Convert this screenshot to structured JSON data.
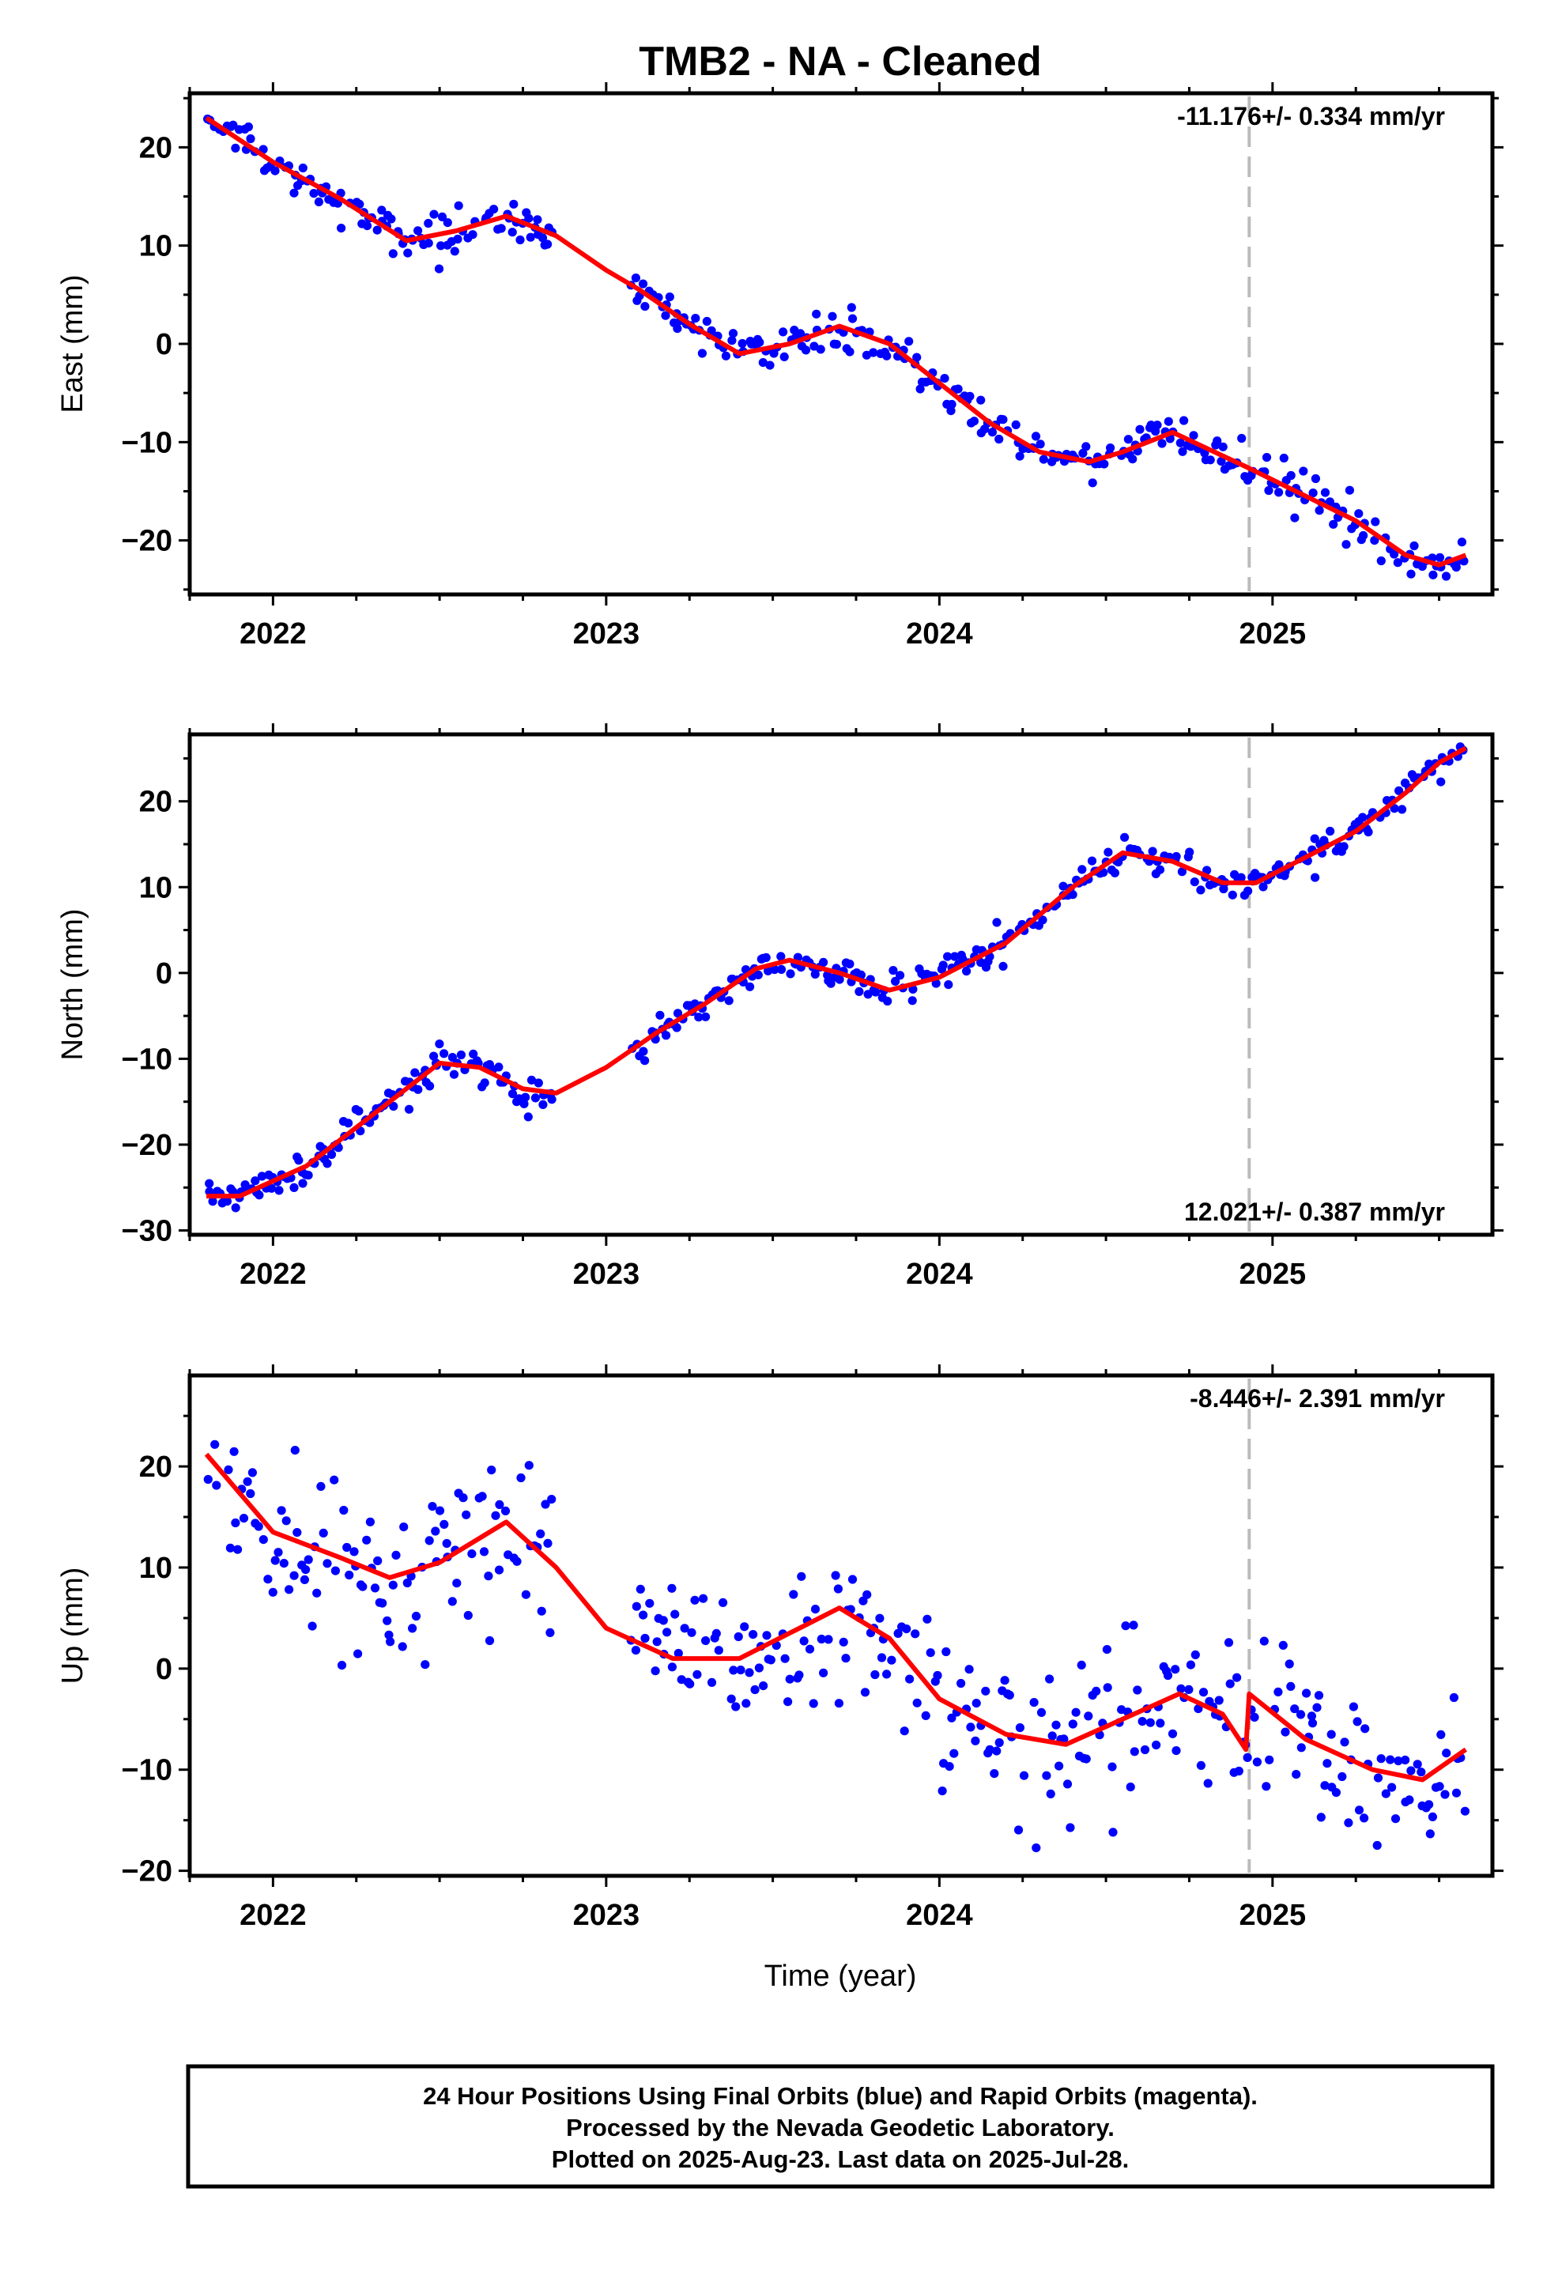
{
  "title": "TMB2  - NA - Cleaned",
  "xlabel": "Time (year)",
  "notes": [
    "24 Hour Positions Using Final Orbits (blue) and Rapid Orbits (magenta).",
    "Processed by the Nevada Geodetic Laboratory.",
    "Plotted on 2025-Aug-23. Last data on 2025-Jul-28."
  ],
  "colors": {
    "points": "#0000ff",
    "model": "#ff0000",
    "marker_line": "#bbbbbb",
    "frame": "#000000"
  },
  "chart_data": [
    {
      "type": "scatter",
      "name": "east",
      "ylabel": "East (mm)",
      "rate_label": "-11.176+/- 0.334 mm/yr",
      "rate_position": "top-right",
      "xlim": [
        2021.75,
        2025.66
      ],
      "ylim": [
        -25.5,
        25.5
      ],
      "xticks": [
        2022,
        2023,
        2024,
        2025
      ],
      "xtick_labels": [
        "2022",
        "2023",
        "2024",
        "2025"
      ],
      "yticks": [
        -20,
        -10,
        0,
        10,
        20
      ],
      "ytick_labels": [
        "−20",
        "−10",
        "0",
        "10",
        "20"
      ],
      "data_gap": [
        2022.84,
        2023.07
      ],
      "equipment_change": 2024.93,
      "model": {
        "x": [
          2021.8,
          2022.0,
          2022.2,
          2022.4,
          2022.55,
          2022.7,
          2022.85,
          2023.0,
          2023.1,
          2023.25,
          2023.4,
          2023.55,
          2023.7,
          2023.85,
          2024.0,
          2024.15,
          2024.3,
          2024.45,
          2024.55,
          2024.7,
          2024.92,
          2024.95,
          2025.1,
          2025.25,
          2025.4,
          2025.5,
          2025.58
        ],
        "y": [
          23.0,
          18.5,
          14.8,
          10.5,
          11.5,
          13.0,
          11.0,
          7.5,
          5.5,
          2.0,
          -1.0,
          0.0,
          1.8,
          0.0,
          -4.0,
          -8.0,
          -11.0,
          -12.0,
          -11.0,
          -9.0,
          -12.5,
          -13.0,
          -15.5,
          -18.0,
          -21.5,
          -22.5,
          -21.5
        ]
      },
      "scatter_sd": 1.0
    },
    {
      "type": "scatter",
      "name": "north",
      "ylabel": "North (mm)",
      "rate_label": "12.021+/- 0.387 mm/yr",
      "rate_position": "bottom-right",
      "xlim": [
        2021.75,
        2025.66
      ],
      "ylim": [
        -30.5,
        27.8
      ],
      "xticks": [
        2022,
        2023,
        2024,
        2025
      ],
      "xtick_labels": [
        "2022",
        "2023",
        "2024",
        "2025"
      ],
      "yticks": [
        -30,
        -20,
        -10,
        0,
        10,
        20
      ],
      "ytick_labels": [
        "−30",
        "−20",
        "−10",
        "0",
        "10",
        "20"
      ],
      "data_gap": [
        2022.84,
        2023.07
      ],
      "equipment_change": 2024.93,
      "model": {
        "x": [
          2021.8,
          2021.9,
          2022.1,
          2022.3,
          2022.5,
          2022.62,
          2022.75,
          2022.85,
          2023.0,
          2023.15,
          2023.3,
          2023.45,
          2023.55,
          2023.7,
          2023.85,
          2024.0,
          2024.2,
          2024.4,
          2024.55,
          2024.7,
          2024.85,
          2024.95,
          2025.1,
          2025.25,
          2025.4,
          2025.5,
          2025.58
        ],
        "y": [
          -26.0,
          -26.0,
          -22.5,
          -16.5,
          -10.5,
          -11.0,
          -13.5,
          -14.0,
          -11.0,
          -7.0,
          -3.5,
          0.5,
          1.5,
          0.0,
          -2.0,
          -0.5,
          3.5,
          10.0,
          14.0,
          13.0,
          10.5,
          10.5,
          13.5,
          16.5,
          21.0,
          24.5,
          26.2
        ]
      },
      "scatter_sd": 0.9
    },
    {
      "type": "scatter",
      "name": "up",
      "ylabel": "Up (mm)",
      "rate_label": "-8.446+/- 2.391 mm/yr",
      "rate_position": "top-right",
      "xlim": [
        2021.75,
        2025.66
      ],
      "ylim": [
        -20.5,
        29.0
      ],
      "xticks": [
        2022,
        2023,
        2024,
        2025
      ],
      "xtick_labels": [
        "2022",
        "2023",
        "2024",
        "2025"
      ],
      "yticks": [
        -20,
        -10,
        0,
        10,
        20
      ],
      "ytick_labels": [
        "−20",
        "−10",
        "0",
        "10",
        "20"
      ],
      "data_gap": [
        2022.84,
        2023.07
      ],
      "equipment_change": 2024.93,
      "model": {
        "x": [
          2021.8,
          2022.0,
          2022.2,
          2022.35,
          2022.5,
          2022.7,
          2022.85,
          2023.0,
          2023.2,
          2023.4,
          2023.55,
          2023.7,
          2023.85,
          2024.0,
          2024.2,
          2024.38,
          2024.55,
          2024.72,
          2024.85,
          2024.92,
          2024.93,
          2025.1,
          2025.3,
          2025.45,
          2025.58
        ],
        "y": [
          21.2,
          13.5,
          11.0,
          9.0,
          10.5,
          14.5,
          10.0,
          4.0,
          1.0,
          1.0,
          3.5,
          6.0,
          3.0,
          -3.0,
          -6.5,
          -7.5,
          -5.0,
          -2.5,
          -4.5,
          -8.0,
          -2.5,
          -7.0,
          -10.0,
          -11.0,
          -8.0
        ]
      },
      "scatter_sd": 4.0
    }
  ]
}
